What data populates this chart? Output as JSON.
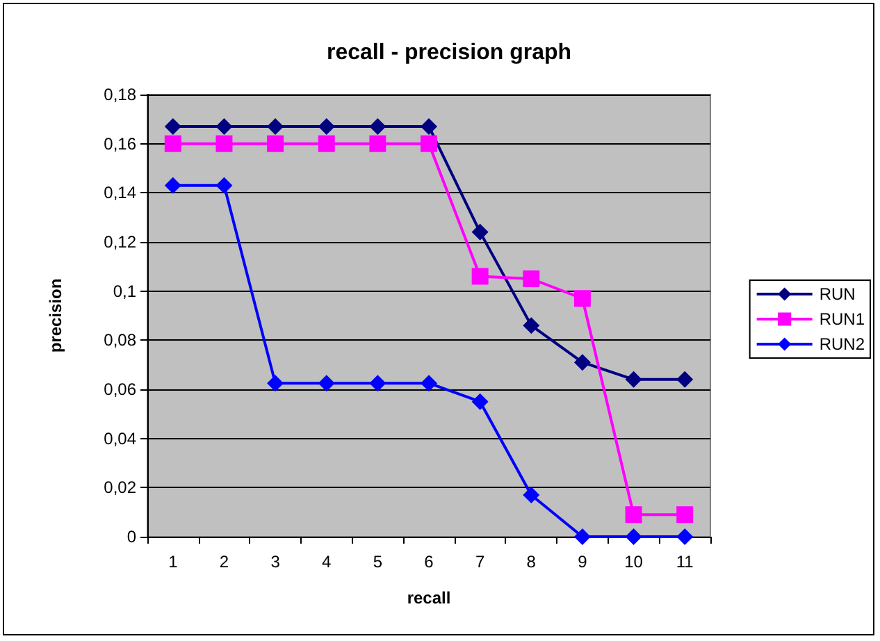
{
  "chart_data": {
    "type": "line",
    "title": "recall - precision graph",
    "xlabel": "recall",
    "ylabel": "precision",
    "categories": [
      "1",
      "2",
      "3",
      "4",
      "5",
      "6",
      "7",
      "8",
      "9",
      "10",
      "11"
    ],
    "series": [
      {
        "name": "RUN",
        "color": "#000080",
        "marker": "diamond",
        "values": [
          0.167,
          0.167,
          0.167,
          0.167,
          0.167,
          0.167,
          0.124,
          0.086,
          0.071,
          0.064,
          0.064
        ]
      },
      {
        "name": "RUN1",
        "color": "#ff00ff",
        "marker": "square",
        "values": [
          0.16,
          0.16,
          0.16,
          0.16,
          0.16,
          0.16,
          0.106,
          0.105,
          0.097,
          0.009,
          0.009
        ]
      },
      {
        "name": "RUN2",
        "color": "#0000ff",
        "marker": "diamond",
        "values": [
          0.143,
          0.143,
          0.0625,
          0.0625,
          0.0625,
          0.0625,
          0.055,
          0.017,
          0,
          0,
          0
        ]
      }
    ],
    "ylim": [
      0,
      0.18
    ],
    "yticks": [
      {
        "value": 0,
        "label": "0"
      },
      {
        "value": 0.02,
        "label": "0,02"
      },
      {
        "value": 0.04,
        "label": "0,04"
      },
      {
        "value": 0.06,
        "label": "0,06"
      },
      {
        "value": 0.08,
        "label": "0,08"
      },
      {
        "value": 0.1,
        "label": "0,1"
      },
      {
        "value": 0.12,
        "label": "0,12"
      },
      {
        "value": 0.14,
        "label": "0,14"
      },
      {
        "value": 0.16,
        "label": "0,16"
      },
      {
        "value": 0.18,
        "label": "0,18"
      }
    ],
    "grid": "y",
    "legend": "right",
    "line_style": "solid"
  }
}
